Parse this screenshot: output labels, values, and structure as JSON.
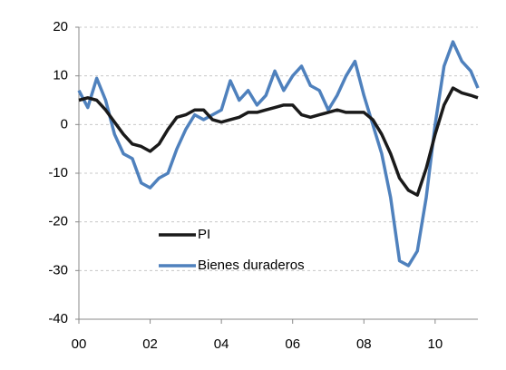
{
  "chart_data": {
    "type": "line",
    "x": [
      2000,
      2000.25,
      2000.5,
      2000.75,
      2001,
      2001.25,
      2001.5,
      2001.75,
      2002,
      2002.25,
      2002.5,
      2002.75,
      2003,
      2003.25,
      2003.5,
      2003.75,
      2004,
      2004.25,
      2004.5,
      2004.75,
      2005,
      2005.25,
      2005.5,
      2005.75,
      2006,
      2006.25,
      2006.5,
      2006.75,
      2007,
      2007.25,
      2007.5,
      2007.75,
      2008,
      2008.25,
      2008.5,
      2008.75,
      2009,
      2009.25,
      2009.5,
      2009.75,
      2010,
      2010.25,
      2010.5,
      2010.75,
      2011,
      2011.2
    ],
    "series": [
      {
        "name": "PI",
        "color": "#1a1a1a",
        "values": [
          5,
          5.5,
          5,
          3,
          0.5,
          -2,
          -4,
          -4.5,
          -5.5,
          -4,
          -1,
          1.5,
          2,
          3,
          3,
          1,
          0.5,
          1,
          1.5,
          2.5,
          2.5,
          3,
          3.5,
          4,
          4,
          2,
          1.5,
          2,
          2.5,
          3,
          2.5,
          2.5,
          2.5,
          1,
          -2,
          -6,
          -11,
          -13.5,
          -14.5,
          -9,
          -2,
          4,
          7.5,
          6.5,
          6,
          5.5
        ]
      },
      {
        "name": "Bienes duraderos",
        "color": "#4f81bd",
        "values": [
          7,
          3.5,
          9.5,
          5,
          -2,
          -6,
          -7,
          -12,
          -13,
          -11,
          -10,
          -5,
          -1,
          2,
          1,
          2,
          3,
          9,
          5,
          7,
          4,
          6,
          11,
          7,
          10,
          12,
          8,
          7,
          3,
          6,
          10,
          13,
          6,
          0,
          -6,
          -15,
          -28,
          -29,
          -26,
          -15,
          0,
          12,
          17,
          13,
          11,
          7.5
        ]
      }
    ],
    "xlim": [
      2000,
      2011.2
    ],
    "xticks": [
      {
        "value": 2000,
        "label": "00"
      },
      {
        "value": 2002,
        "label": "02"
      },
      {
        "value": 2004,
        "label": "04"
      },
      {
        "value": 2006,
        "label": "06"
      },
      {
        "value": 2008,
        "label": "08"
      },
      {
        "value": 2010,
        "label": "10"
      }
    ],
    "ylim": [
      -40,
      20
    ],
    "yticks": [
      -40,
      -30,
      -20,
      -10,
      0,
      10,
      20
    ],
    "grid": true
  }
}
